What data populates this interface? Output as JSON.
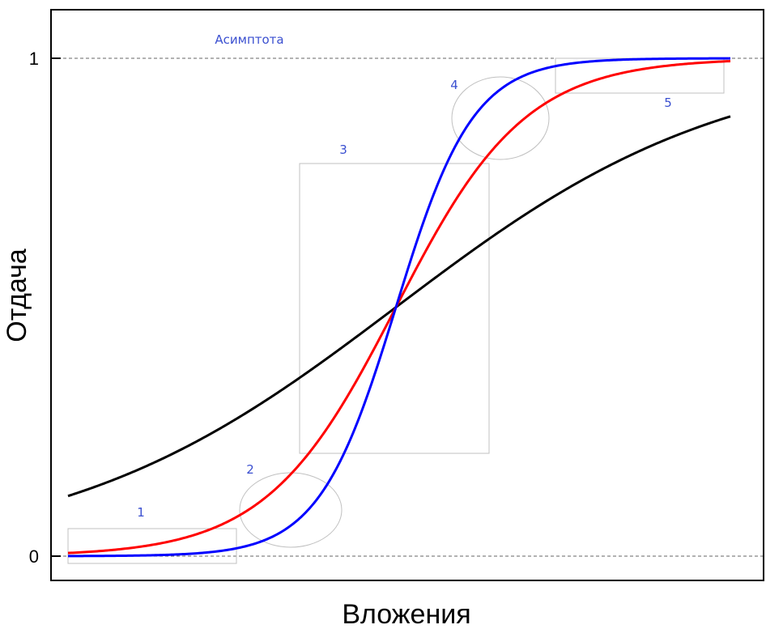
{
  "chart_data": {
    "type": "line",
    "xlabel": "Вложения",
    "ylabel": "Отдача",
    "ylim": [
      0,
      1
    ],
    "y_ticks": [
      "0",
      "1"
    ],
    "x_ticks_shown": false,
    "grid": false,
    "legend": "none",
    "reference_lines": [
      {
        "y": 0,
        "style": "dashed"
      },
      {
        "y": 1,
        "style": "dashed"
      }
    ],
    "asymptote_label": "Асимптота",
    "series": [
      {
        "color": "#000000",
        "curve": "logistic",
        "steepness": "low"
      },
      {
        "color": "#ff0000",
        "curve": "logistic",
        "steepness": "medium"
      },
      {
        "color": "#0000ff",
        "curve": "logistic",
        "steepness": "high"
      }
    ],
    "annotations": [
      {
        "label": "1",
        "shape": "rectangle"
      },
      {
        "label": "2",
        "shape": "ellipse"
      },
      {
        "label": "3",
        "shape": "rectangle"
      },
      {
        "label": "4",
        "shape": "ellipse"
      },
      {
        "label": "5",
        "shape": "rectangle"
      }
    ]
  }
}
